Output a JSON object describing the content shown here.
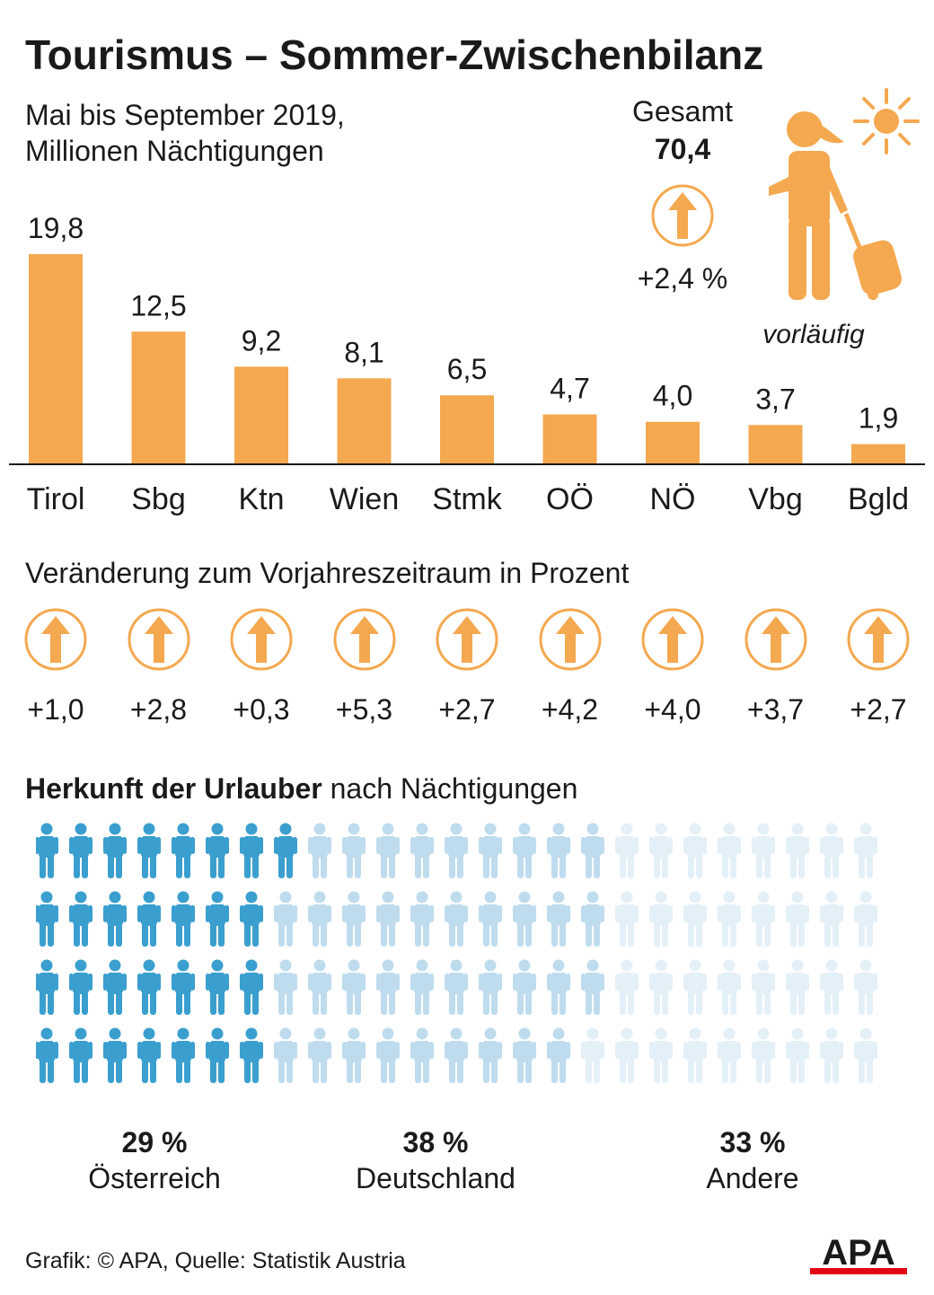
{
  "title": "Tourismus – Sommer-Zwischenbilanz",
  "subtitle_line1": "Mai bis September 2019,",
  "subtitle_line2": "Millionen Nächtigungen",
  "total": {
    "label": "Gesamt",
    "value": "70,4",
    "change": "+2,4 %",
    "note": "vorläufig"
  },
  "colors": {
    "bar": "#f4a84f",
    "arrow": "#f4a84f",
    "austria": "#3a9fcf",
    "germany": "#bfdcee",
    "other": "#e4f0f8",
    "apa_red": "#e30613"
  },
  "icons": [
    "sun-icon",
    "traveler-with-suitcase-icon",
    "up-arrow-circle-icon",
    "person-icon"
  ],
  "chart_data": {
    "type": "bar",
    "categories": [
      "Tirol",
      "Sbg",
      "Ktn",
      "Wien",
      "Stmk",
      "OÖ",
      "NÖ",
      "Vbg",
      "Bgld"
    ],
    "values": [
      19.8,
      12.5,
      9.2,
      8.1,
      6.5,
      4.7,
      4.0,
      3.7,
      1.9
    ],
    "value_labels": [
      "19,8",
      "12,5",
      "9,2",
      "8,1",
      "6,5",
      "4,7",
      "4,0",
      "3,7",
      "1,9"
    ],
    "ylim": [
      0,
      20
    ]
  },
  "changes": {
    "heading": "Veränderung zum Vorjahreszeitraum in Prozent",
    "values": [
      1.0,
      2.8,
      0.3,
      5.3,
      2.7,
      4.2,
      4.0,
      3.7,
      2.7
    ],
    "labels": [
      "+1,0",
      "+2,8",
      "+0,3",
      "+5,3",
      "+2,7",
      "+4,2",
      "+4,0",
      "+3,7",
      "+2,7"
    ]
  },
  "origin": {
    "heading_bold": "Herkunft der Urlauber",
    "heading_rest": " nach Nächtigungen",
    "groups": [
      {
        "pct": "29 %",
        "name": "Österreich",
        "value": 29
      },
      {
        "pct": "38 %",
        "name": "Deutschland",
        "value": 38
      },
      {
        "pct": "33 %",
        "name": "Andere",
        "value": 33
      }
    ]
  },
  "footer": "Grafik: © APA, Quelle: Statistik Austria",
  "logo_text": "APA"
}
